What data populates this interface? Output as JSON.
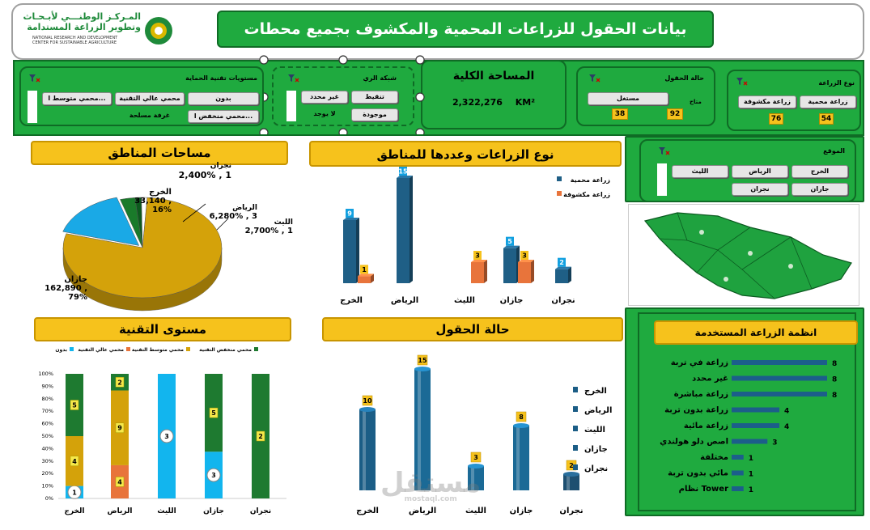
{
  "header": {
    "title": "بيانات الحقول للزراعات المحمية والمكشوف بجميع محطات",
    "logo_ar_line1": "المـركـز الوطنـــي لأبـحـاث",
    "logo_ar_line2": "وتطوير الزراعة المستدامة",
    "logo_en_line1": "NATIONAL RESEARCH AND DEVELOPMENT",
    "logo_en_line2": "CENTER FOR SUSTAINABLE AGRICULTURE"
  },
  "slicers": {
    "farming_type": {
      "title": "نوع الزراعة",
      "items": [
        "زراعة محمية",
        "زراعة مكشوفة"
      ],
      "counts": [
        "54",
        "76"
      ]
    },
    "field_status": {
      "title": "حالة الحقول",
      "items": [
        "مستغل"
      ],
      "sub_label": "متاح",
      "counts": [
        "92",
        "38"
      ]
    },
    "total_area": {
      "title": "المساحة الكلية",
      "value": "2,322,276",
      "unit": "KM²"
    },
    "irrigation": {
      "title": "شبكة الري",
      "items": [
        "تنقيط",
        "غير محدد",
        "موجودة",
        "لا يوجد"
      ]
    },
    "protection": {
      "title": "مستويات تقنية الحماية",
      "items": [
        "بدون",
        "محمي عالي التقنية",
        "محمي متوسط ا...",
        "محمي منخفض ا...",
        "غرفة مسلحة"
      ]
    },
    "location": {
      "title": "الموقع",
      "items": [
        "الخرج",
        "الرياض",
        "الليث",
        "جازان",
        "نجران"
      ]
    }
  },
  "section_titles": {
    "areas": "مساحات المناطق",
    "types": "نوع الزراعات وعددها للمناطق",
    "tech": "مستوى التقنية",
    "status": "حالة الحقول",
    "systems": "انظمة الزراعة المستخدمة"
  },
  "pie_labels": [
    {
      "name": "نجران",
      "value": "1 , 2,400%"
    },
    {
      "name": "الخرج",
      "value": ", 33,140",
      "pct": "16%"
    },
    {
      "name": "الرياض",
      "value": "3 , 6,280%"
    },
    {
      "name": "الليث",
      "value": "1 , 2,700%"
    },
    {
      "name": "جازان",
      "value": ", 162,890",
      "pct": "79%"
    }
  ],
  "watermark": "مستقل",
  "watermark_url": "mostaql.com",
  "chart_data": [
    {
      "id": "areas",
      "type": "pie",
      "title": "مساحات المناطق",
      "series": [
        {
          "name": "جازان",
          "value": 162890,
          "percent": 79,
          "color": "#d4a20a"
        },
        {
          "name": "الخرج",
          "value": 33140,
          "percent": 16,
          "color": "#1aa9e6"
        },
        {
          "name": "الرياض",
          "value": 6280,
          "percent": 3,
          "color": "#1a7a2a"
        },
        {
          "name": "الليث",
          "value": 2700,
          "percent": 1,
          "color": "#0d5a1e"
        },
        {
          "name": "نجران",
          "value": 2400,
          "percent": 1,
          "color": "#ffffff"
        }
      ]
    },
    {
      "id": "types",
      "type": "bar",
      "title": "نوع الزراعات وعددها للمناطق",
      "categories": [
        "الخرج",
        "الرياض",
        "الليث",
        "جازان",
        "نجران"
      ],
      "series": [
        {
          "name": "زراعة محمية",
          "values": [
            9,
            15,
            null,
            5,
            2
          ],
          "color": "#1f5f86"
        },
        {
          "name": "زراعة مكشوفة",
          "values": [
            1,
            null,
            3,
            3,
            null
          ],
          "color": "#e8743b"
        }
      ]
    },
    {
      "id": "tech",
      "type": "bar",
      "title": "مستوى التقنية",
      "stacked_percent": true,
      "categories": [
        "الخرج",
        "الرياض",
        "الليث",
        "جازان",
        "نجران"
      ],
      "yticks": [
        "0%",
        "10%",
        "20%",
        "30%",
        "40%",
        "50%",
        "60%",
        "70%",
        "80%",
        "90%",
        "100%"
      ],
      "series": [
        {
          "name": "بدون",
          "values": [
            1,
            0,
            3,
            3,
            0
          ],
          "color": "#12b5ee"
        },
        {
          "name": "محمي عالي التقنية",
          "values": [
            0,
            4,
            0,
            0,
            0
          ],
          "color": "#e8743b"
        },
        {
          "name": "محمي متوسط التقنية",
          "values": [
            4,
            9,
            0,
            0,
            0
          ],
          "color": "#d4a20a"
        },
        {
          "name": "محمي منخفض التقنية",
          "values": [
            5,
            2,
            0,
            5,
            2
          ],
          "color": "#1e7a30"
        }
      ]
    },
    {
      "id": "status",
      "type": "bar",
      "title": "حالة الحقول",
      "categories": [
        "الخرج",
        "الرياض",
        "الليث",
        "جازان",
        "نجران"
      ],
      "values": [
        10,
        15,
        3,
        8,
        2
      ],
      "legend": [
        "الخرج",
        "الرياض",
        "الليث",
        "جازان",
        "نجران"
      ]
    },
    {
      "id": "systems",
      "type": "bar",
      "orientation": "horizontal",
      "title": "انظمة الزراعة المستخدمة",
      "categories": [
        "زراعة في تربة",
        "غير محدد",
        "زراعة مباشرة",
        "زراعة بدون تربة",
        "زراعة مائية",
        "اصص دلو هولندي",
        "مختلفة",
        "مائي بدون تربة",
        "نظام Tower"
      ],
      "values": [
        8,
        8,
        8,
        4,
        4,
        3,
        1,
        1,
        1
      ]
    }
  ]
}
